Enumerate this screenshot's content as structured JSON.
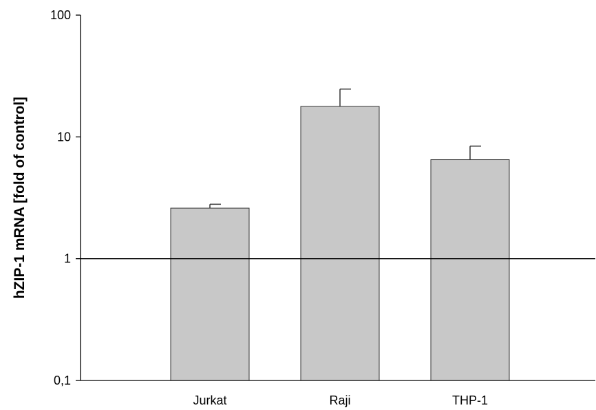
{
  "chart_data": {
    "type": "bar",
    "title": "",
    "xlabel": "",
    "ylabel": "hZIP-1 mRNA [fold of control]",
    "yscale": "log",
    "ylim": [
      0.1,
      100
    ],
    "grid": false,
    "categories": [
      "Jurkat",
      "Raji",
      "THP-1"
    ],
    "values": [
      2.6,
      17.8,
      6.5
    ],
    "error_upper": [
      0.2,
      6.9,
      1.9
    ],
    "reference_line": 1,
    "y_ticks": [
      {
        "value": 0.1,
        "label": "0,1"
      },
      {
        "value": 1,
        "label": "1"
      },
      {
        "value": 10,
        "label": "10"
      },
      {
        "value": 100,
        "label": "100"
      }
    ],
    "bar_color": "#c8c8c8",
    "bar_edge_color": "#333333",
    "line_color": "#000000"
  }
}
